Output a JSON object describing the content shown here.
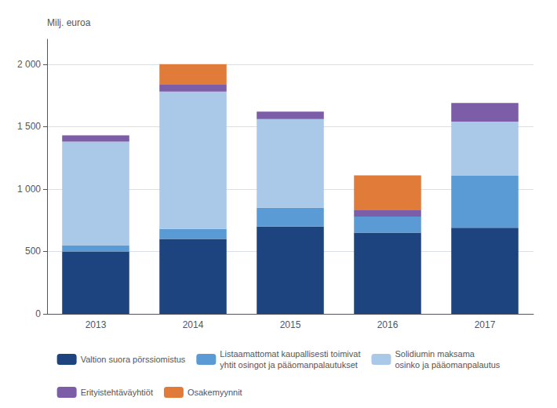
{
  "chart_data": {
    "type": "bar",
    "stacked": true,
    "ylabel": "Milj. euroa",
    "categories": [
      "2013",
      "2014",
      "2015",
      "2016",
      "2017"
    ],
    "series": [
      {
        "name": "Valtion suora pörssiomistus",
        "color": "#1e4480",
        "values": [
          500,
          600,
          700,
          650,
          690
        ]
      },
      {
        "name": "Listaamattomat kaupallisesti toimivat\nyhtit osingot ja pääomanpalautukset",
        "color": "#5b9bd5",
        "values": [
          50,
          80,
          150,
          130,
          420
        ]
      },
      {
        "name": "Solidiumin maksama\nosinko ja pääomanpalautus",
        "color": "#aac8e8",
        "values": [
          830,
          1100,
          710,
          0,
          430
        ]
      },
      {
        "name": "Erityistehtäväyhtiöt",
        "color": "#7b5ea7",
        "values": [
          50,
          60,
          60,
          50,
          150
        ]
      },
      {
        "name": "Osakemyynnit",
        "color": "#e07b39",
        "values": [
          0,
          160,
          0,
          280,
          0
        ]
      }
    ],
    "ylim": [
      0,
      2200
    ],
    "yticks": [
      0,
      500,
      {
        "value": 1000,
        "label": "1 000"
      },
      {
        "value": 1500,
        "label": "1 500"
      },
      {
        "value": 2000,
        "label": "2 000"
      }
    ],
    "grid": true,
    "legend": "bottom"
  }
}
